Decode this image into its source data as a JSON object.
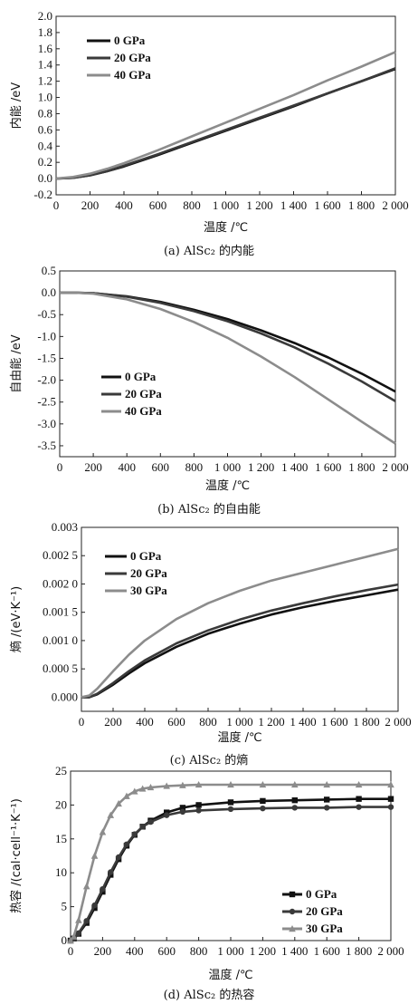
{
  "chart_data": [
    {
      "type": "line",
      "panel": "a",
      "caption": "(a) AlSc₂ 的内能",
      "xlabel": "温度 /℃",
      "ylabel": "内能 /eV",
      "xlim": [
        0,
        2000
      ],
      "ylim": [
        -0.2,
        2.0
      ],
      "xticks": [
        0,
        200,
        400,
        600,
        800,
        1000,
        1200,
        1400,
        1600,
        1800,
        2000
      ],
      "xtick_labels": [
        "0",
        "200",
        "400",
        "600",
        "800",
        "1 000",
        "1 200",
        "1 400",
        "1 600",
        "1 800",
        "2 000"
      ],
      "yticks": [
        -0.2,
        0.0,
        0.2,
        0.4,
        0.6,
        0.8,
        1.0,
        1.2,
        1.4,
        1.6,
        1.8,
        2.0
      ],
      "ytick_labels": [
        "-0.2",
        "0.0",
        "0.2",
        "0.4",
        "0.6",
        "0.8",
        "1.0",
        "1.2",
        "1.4",
        "1.6",
        "1.8",
        "2.0"
      ],
      "legend_position": "top-left",
      "series": [
        {
          "name": "0 GPa",
          "color": "#111111",
          "x": [
            0,
            100,
            200,
            300,
            400,
            600,
            800,
            1000,
            1200,
            1400,
            1600,
            1800,
            2000
          ],
          "y": [
            0.0,
            0.01,
            0.04,
            0.09,
            0.15,
            0.29,
            0.44,
            0.59,
            0.74,
            0.89,
            1.05,
            1.2,
            1.35
          ]
        },
        {
          "name": "20 GPa",
          "color": "#3a3a3a",
          "x": [
            0,
            100,
            200,
            300,
            400,
            600,
            800,
            1000,
            1200,
            1400,
            1600,
            1800,
            2000
          ],
          "y": [
            0.0,
            0.01,
            0.04,
            0.09,
            0.16,
            0.3,
            0.45,
            0.6,
            0.75,
            0.9,
            1.05,
            1.2,
            1.36
          ]
        },
        {
          "name": "40 GPa",
          "color": "#8c8c8c",
          "x": [
            0,
            100,
            200,
            300,
            400,
            600,
            800,
            1000,
            1200,
            1400,
            1600,
            1800,
            2000
          ],
          "y": [
            0.0,
            0.02,
            0.06,
            0.12,
            0.19,
            0.35,
            0.52,
            0.69,
            0.86,
            1.03,
            1.21,
            1.38,
            1.56
          ]
        }
      ]
    },
    {
      "type": "line",
      "panel": "b",
      "caption": "(b) AlSc₂ 的自由能",
      "xlabel": "温度 /℃",
      "ylabel": "自由能 /eV",
      "xlim": [
        0,
        2000
      ],
      "ylim": [
        -3.75,
        0.5
      ],
      "xticks": [
        0,
        200,
        400,
        600,
        800,
        1000,
        1200,
        1400,
        1600,
        1800,
        2000
      ],
      "xtick_labels": [
        "0",
        "200",
        "400",
        "600",
        "800",
        "1 000",
        "1 200",
        "1 400",
        "1 600",
        "1 800",
        "2 000"
      ],
      "yticks": [
        0.5,
        0.0,
        -0.5,
        -1.0,
        -1.5,
        -2.0,
        -2.5,
        -3.0,
        -3.5
      ],
      "ytick_labels": [
        "0.5",
        "0.0",
        "-0.5",
        "-1.0",
        "-1.5",
        "-2.0",
        "-2.5",
        "-3.0",
        "-3.5"
      ],
      "legend_position": "bottom-left",
      "series": [
        {
          "name": "0 GPa",
          "color": "#111111",
          "x": [
            0,
            100,
            200,
            400,
            600,
            800,
            1000,
            1200,
            1400,
            1600,
            1800,
            2000
          ],
          "y": [
            0.0,
            0.0,
            -0.01,
            -0.08,
            -0.21,
            -0.39,
            -0.6,
            -0.86,
            -1.15,
            -1.48,
            -1.85,
            -2.26
          ]
        },
        {
          "name": "20 GPa",
          "color": "#3a3a3a",
          "x": [
            0,
            100,
            200,
            400,
            600,
            800,
            1000,
            1200,
            1400,
            1600,
            1800,
            2000
          ],
          "y": [
            0.0,
            0.0,
            -0.01,
            -0.09,
            -0.23,
            -0.42,
            -0.65,
            -0.93,
            -1.25,
            -1.62,
            -2.03,
            -2.48
          ]
        },
        {
          "name": "40 GPa",
          "color": "#8c8c8c",
          "x": [
            0,
            100,
            200,
            400,
            600,
            800,
            1000,
            1200,
            1400,
            1600,
            1800,
            2000
          ],
          "y": [
            0.0,
            0.0,
            -0.02,
            -0.15,
            -0.37,
            -0.67,
            -1.03,
            -1.46,
            -1.93,
            -2.44,
            -2.95,
            -3.45
          ]
        }
      ]
    },
    {
      "type": "line",
      "panel": "c",
      "caption": "(c) AlSc₂ 的熵",
      "xlabel": "温度 /℃",
      "ylabel": "熵 /(eV·K⁻¹)",
      "xlim": [
        0,
        2000
      ],
      "ylim": [
        -0.00025,
        0.003
      ],
      "xticks": [
        0,
        200,
        400,
        600,
        800,
        1000,
        1200,
        1400,
        1600,
        1800,
        2000
      ],
      "xtick_labels": [
        "0",
        "200",
        "400",
        "600",
        "800",
        "1 000",
        "1 200",
        "1 400",
        "1 600",
        "1 800",
        "2 000"
      ],
      "yticks": [
        0.0,
        0.0005,
        0.001,
        0.0015,
        0.002,
        0.0025,
        0.003
      ],
      "ytick_labels": [
        "0.000",
        "0.000 5",
        "0.001 0",
        "0.001 5",
        "0.002 0",
        "0.002 5",
        "0.003"
      ],
      "legend_position": "top-left",
      "series": [
        {
          "name": "0 GPa",
          "color": "#111111",
          "x": [
            0,
            50,
            100,
            200,
            300,
            400,
            600,
            800,
            1000,
            1200,
            1400,
            1600,
            1800,
            2000
          ],
          "y": [
            0.0,
            0.0,
            5e-05,
            0.00022,
            0.00042,
            0.0006,
            0.00089,
            0.00112,
            0.0013,
            0.00146,
            0.00159,
            0.0017,
            0.0018,
            0.0019
          ]
        },
        {
          "name": "20 GPa",
          "color": "#3a3a3a",
          "x": [
            0,
            50,
            100,
            200,
            300,
            400,
            600,
            800,
            1000,
            1200,
            1400,
            1600,
            1800,
            2000
          ],
          "y": [
            0.0,
            0.0,
            6e-05,
            0.00025,
            0.00046,
            0.00065,
            0.00095,
            0.00118,
            0.00137,
            0.00153,
            0.00166,
            0.00178,
            0.00189,
            0.00199
          ]
        },
        {
          "name": "30 GPa",
          "color": "#8c8c8c",
          "x": [
            0,
            50,
            100,
            200,
            300,
            400,
            600,
            800,
            1000,
            1200,
            1400,
            1600,
            1800,
            2000
          ],
          "y": [
            0.0,
            3e-05,
            0.00015,
            0.00046,
            0.00075,
            0.001,
            0.00138,
            0.00166,
            0.00188,
            0.00206,
            0.0022,
            0.00234,
            0.00248,
            0.00262
          ]
        }
      ]
    },
    {
      "type": "line",
      "panel": "d",
      "caption": "(d) AlSc₂ 的热容",
      "xlabel": "温度 /℃",
      "ylabel": "热容 /(cal·cell⁻¹·K⁻¹)",
      "xlim": [
        0,
        2000
      ],
      "ylim": [
        0,
        25
      ],
      "xticks": [
        0,
        200,
        400,
        600,
        800,
        1000,
        1200,
        1400,
        1600,
        1800,
        2000
      ],
      "xtick_labels": [
        "0",
        "200",
        "400",
        "600",
        "800",
        "1 000",
        "1 200",
        "1 400",
        "1 600",
        "1 800",
        "2 000"
      ],
      "yticks": [
        0,
        5,
        10,
        15,
        20,
        25
      ],
      "ytick_labels": [
        "0",
        "5",
        "10",
        "15",
        "20",
        "25"
      ],
      "legend_position": "bottom-right",
      "series": [
        {
          "name": "0 GPa",
          "color": "#111111",
          "marker": "square",
          "x": [
            0,
            20,
            50,
            100,
            150,
            200,
            250,
            300,
            350,
            400,
            450,
            500,
            600,
            700,
            800,
            1000,
            1200,
            1400,
            1600,
            1800,
            2000
          ],
          "y": [
            0.0,
            0.3,
            1.0,
            2.6,
            4.8,
            7.2,
            9.7,
            12.0,
            14.0,
            15.6,
            16.8,
            17.7,
            18.9,
            19.6,
            20.0,
            20.4,
            20.6,
            20.7,
            20.8,
            20.9,
            20.9
          ]
        },
        {
          "name": "20 GPa",
          "color": "#3a3a3a",
          "marker": "circle",
          "x": [
            0,
            20,
            50,
            100,
            150,
            200,
            250,
            300,
            350,
            400,
            450,
            500,
            600,
            700,
            800,
            1000,
            1200,
            1400,
            1600,
            1800,
            2000
          ],
          "y": [
            0.0,
            0.3,
            1.1,
            2.9,
            5.2,
            7.6,
            10.1,
            12.3,
            14.2,
            15.7,
            16.8,
            17.5,
            18.5,
            19.0,
            19.2,
            19.4,
            19.5,
            19.6,
            19.6,
            19.7,
            19.7
          ]
        },
        {
          "name": "30 GPa",
          "color": "#8c8c8c",
          "marker": "triangle",
          "x": [
            0,
            20,
            50,
            100,
            150,
            200,
            250,
            300,
            350,
            400,
            450,
            500,
            600,
            700,
            800,
            1000,
            1200,
            1400,
            1600,
            1800,
            2000
          ],
          "y": [
            0.0,
            0.6,
            3.0,
            8.0,
            12.5,
            16.0,
            18.5,
            20.2,
            21.3,
            22.0,
            22.4,
            22.6,
            22.8,
            22.9,
            23.0,
            23.0,
            23.0,
            23.0,
            23.0,
            23.0,
            23.0
          ]
        }
      ]
    }
  ]
}
